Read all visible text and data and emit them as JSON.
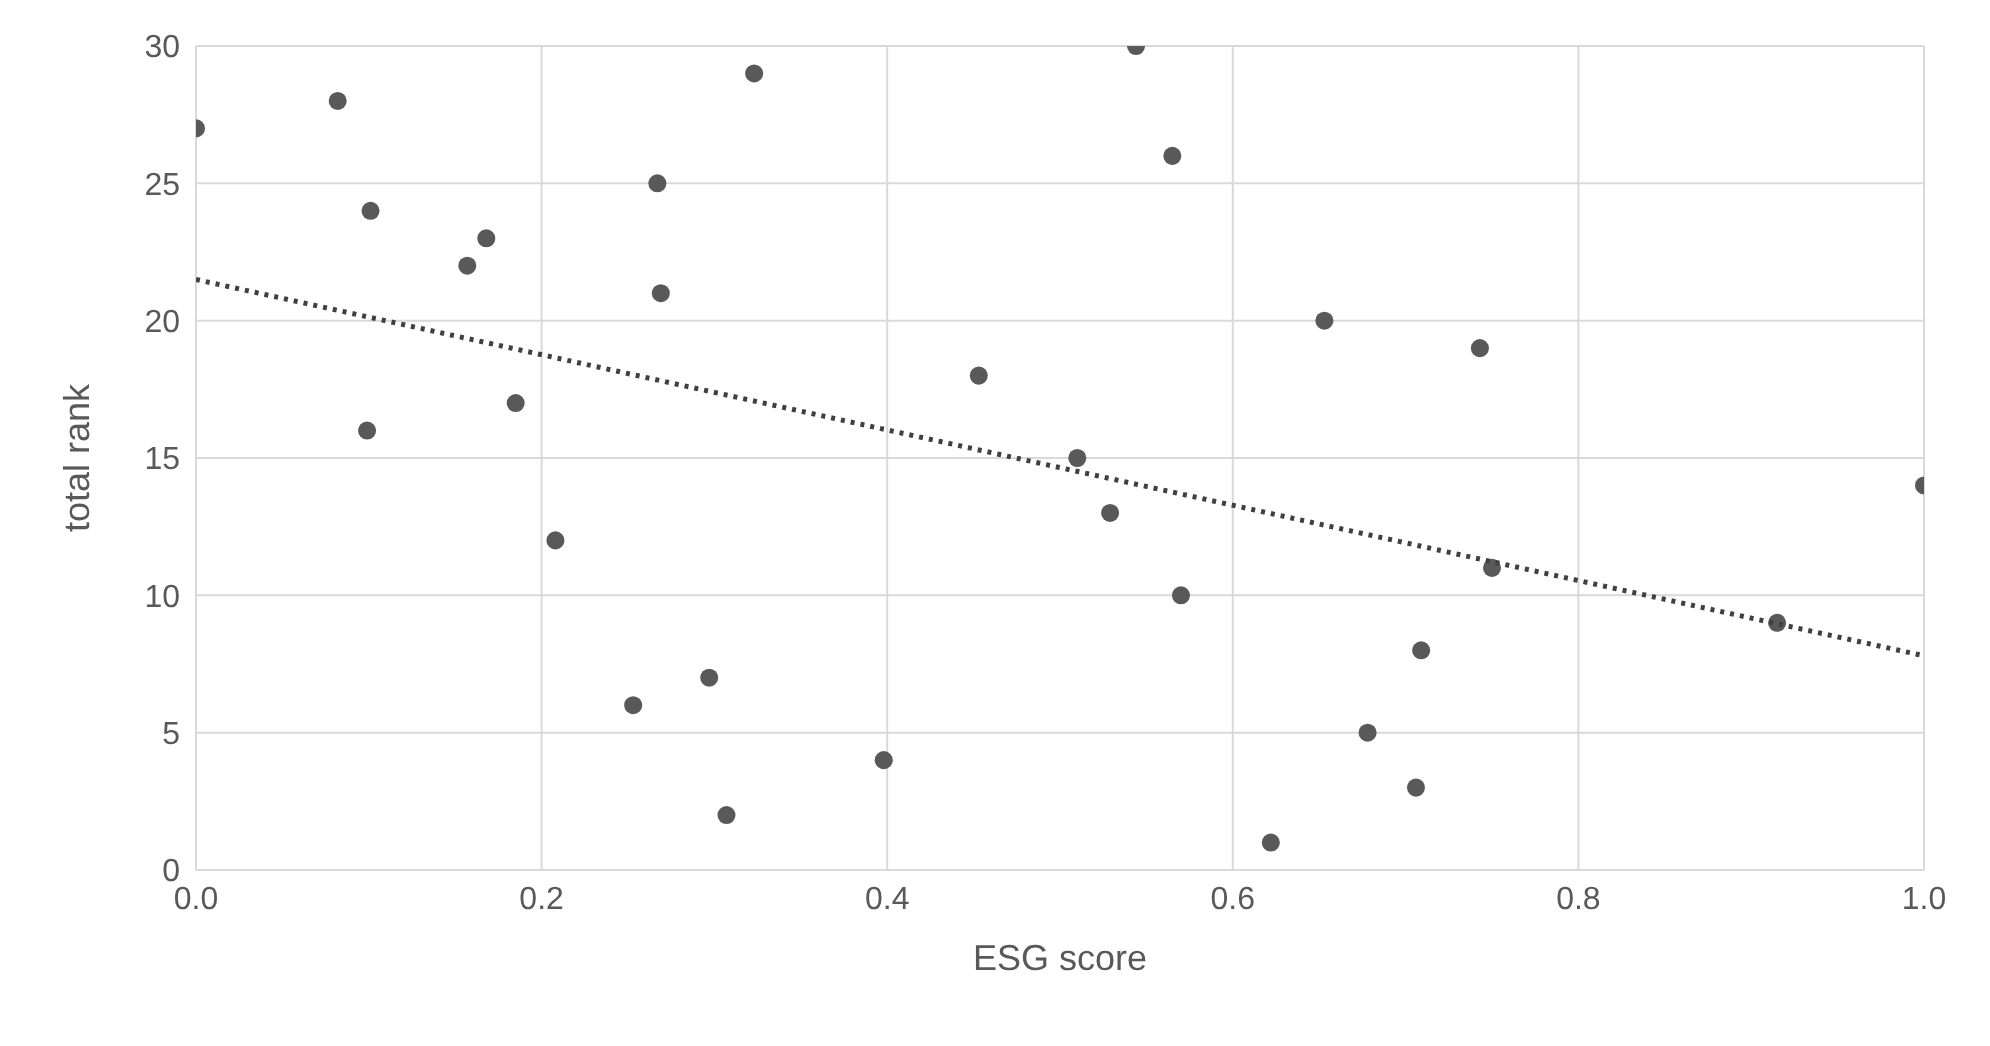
{
  "chart_data": {
    "type": "scatter",
    "xlabel": "ESG score",
    "ylabel": "total rank",
    "series": [
      {
        "color": "#595959",
        "x": [
          0.0,
          0.082,
          0.101,
          0.099,
          0.157,
          0.168,
          0.185,
          0.208,
          0.267,
          0.269,
          0.323,
          0.253,
          0.297,
          0.307,
          0.398,
          0.453,
          0.51,
          0.529,
          0.544,
          0.565,
          0.57,
          0.622,
          0.653,
          0.678,
          0.706,
          0.709,
          0.743,
          0.75,
          0.915,
          1.0
        ],
        "values": [
          27,
          28,
          24,
          16,
          22,
          23,
          17,
          12,
          25,
          21,
          29,
          6,
          7,
          2,
          4,
          18,
          15,
          13,
          30,
          26,
          10,
          1,
          20,
          5,
          3,
          8,
          19,
          11,
          9,
          14
        ]
      },
      {
        "type": "line",
        "color": "#404040",
        "line_style": "dotted",
        "marker": "none",
        "x": [
          0,
          1
        ],
        "values": [
          21.5,
          7.8
        ]
      }
    ],
    "marker": "circle",
    "xlim": [
      0,
      1
    ],
    "xticks": [
      {
        "value": 0,
        "label": "0.0"
      },
      {
        "value": 0.2,
        "label": "0.2"
      },
      {
        "value": 0.4,
        "label": "0.4"
      },
      {
        "value": 0.6,
        "label": "0.6"
      },
      {
        "value": 0.8,
        "label": "0.8"
      },
      {
        "value": 1,
        "label": "1.0"
      }
    ],
    "ylim": [
      0,
      30
    ],
    "yticks": [
      0,
      5,
      10,
      15,
      20,
      25,
      30
    ],
    "grid": true
  }
}
